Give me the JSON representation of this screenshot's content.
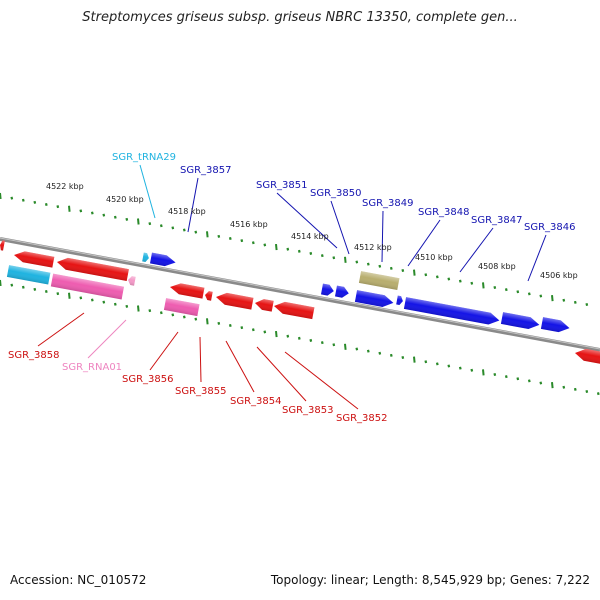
{
  "title": "Streptomyces griseus subsp. griseus NBRC 13350, complete gen...",
  "accession": "Accession: NC_010572",
  "summary": "Topology: linear; Length: 8,545,929 bp; Genes: 7,222",
  "colors": {
    "forward_gene": "#1414e6",
    "reverse_gene": "#e61414",
    "trna": "#1fb3e0",
    "rna": "#ee5cb0",
    "misc_feature": "#b8ae6e",
    "dna_line": "#8a8a8a",
    "scale_ticks": "#2a8a2a"
  },
  "scale_labels": [
    "4522 kbp",
    "4520 kbp",
    "4518 kbp",
    "4516 kbp",
    "4514 kbp",
    "4512 kbp",
    "4510 kbp",
    "4508 kbp",
    "4506 kbp"
  ],
  "labels_top": [
    {
      "text": "SGR_tRNA29",
      "color": "#1fb3e0"
    },
    {
      "text": "SGR_3857",
      "color": "#1414b0"
    },
    {
      "text": "SGR_3851",
      "color": "#1414b0"
    },
    {
      "text": "SGR_3850",
      "color": "#1414b0"
    },
    {
      "text": "SGR_3849",
      "color": "#1414b0"
    },
    {
      "text": "SGR_3848",
      "color": "#1414b0"
    },
    {
      "text": "SGR_3847",
      "color": "#1414b0"
    },
    {
      "text": "SGR_3846",
      "color": "#1414b0"
    }
  ],
  "labels_bottom": [
    {
      "text": "SGR_3858",
      "color": "#cc1010"
    },
    {
      "text": "SGR_RNA01",
      "color": "#ee84c0"
    },
    {
      "text": "SGR_3856",
      "color": "#cc1010"
    },
    {
      "text": "SGR_3855",
      "color": "#cc1010"
    },
    {
      "text": "SGR_3854",
      "color": "#cc1010"
    },
    {
      "text": "SGR_3853",
      "color": "#cc1010"
    },
    {
      "text": "SGR_3852",
      "color": "#cc1010"
    }
  ]
}
